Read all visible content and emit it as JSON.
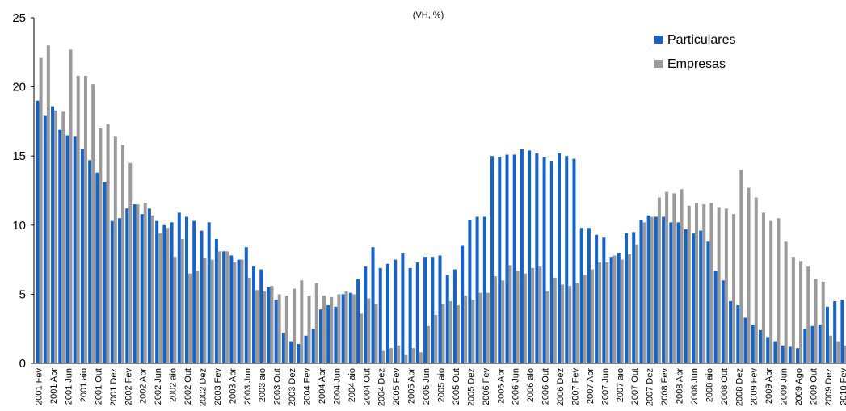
{
  "chart_data": {
    "type": "bar",
    "title": "(VH, %)",
    "categories": [
      "2001 Fev",
      null,
      "2001 Abr",
      null,
      "2001 Jun",
      null,
      "2001 aio",
      null,
      "2001 Out",
      null,
      "2001 Dez",
      null,
      "2002 Fev",
      null,
      "2002 Abr",
      null,
      "2002 Jun",
      null,
      "2002 aio",
      null,
      "2002 Out",
      null,
      "2002 Dez",
      null,
      "2003 Fev",
      null,
      "2003 Abr",
      null,
      "2003 Jun",
      null,
      "2003 aio",
      null,
      "2003 Out",
      null,
      "2003 Dez",
      null,
      "2004 Fev",
      null,
      "2004 Abr",
      null,
      "2004 Jun",
      null,
      "2004 aio",
      null,
      "2004 Out",
      null,
      "2004 Dez",
      null,
      "2005 Fev",
      null,
      "2005 Abr",
      null,
      "2005 Jun",
      null,
      "2005 aio",
      null,
      "2005 Out",
      null,
      "2005 Dez",
      null,
      "2006 Fev",
      null,
      "2006 Abr",
      null,
      "2006 Jun",
      null,
      "2006 aio",
      null,
      "2006 Out",
      null,
      "2006 Dez",
      null,
      "2007 Fev",
      null,
      "2007 Abr",
      null,
      "2007 Jun",
      null,
      "2007 aio",
      null,
      "2007 Out",
      null,
      "2007 Dez",
      null,
      "2008 Fev",
      null,
      "2008 Abr",
      null,
      "2008 Jun",
      null,
      "2008 aio",
      null,
      "2008 Out",
      null,
      "2008 Dez",
      null,
      "2009 Fev",
      null,
      "2009 Abr",
      null,
      "2009 Jun",
      null,
      "2009 Ago",
      null,
      "2009 Out",
      null,
      "2009 Dez",
      null,
      "2010 Fev"
    ],
    "series": [
      {
        "name": "Particulares",
        "color": "#1563c9",
        "values": [
          19.0,
          17.9,
          18.6,
          16.9,
          16.5,
          16.4,
          15.5,
          14.7,
          13.8,
          13.1,
          10.3,
          10.5,
          11.2,
          11.5,
          10.8,
          11.2,
          10.3,
          10.0,
          10.2,
          10.9,
          10.6,
          10.3,
          9.6,
          10.2,
          9.0,
          8.1,
          7.8,
          7.5,
          8.4,
          7.0,
          6.8,
          5.5,
          4.6,
          2.2,
          1.6,
          1.4,
          2.0,
          2.5,
          3.9,
          4.2,
          4.1,
          5.0,
          5.1,
          6.1,
          7.0,
          8.4,
          6.9,
          7.2,
          7.5,
          8.0,
          6.9,
          7.3,
          7.7,
          7.7,
          7.8,
          6.4,
          6.8,
          8.5,
          10.4,
          10.6,
          10.6,
          15.0,
          14.9,
          15.1,
          15.1,
          15.5,
          15.4,
          15.2,
          14.9,
          14.6,
          15.2,
          15.0,
          14.8,
          9.8,
          9.8,
          9.3,
          9.1,
          7.7,
          8.0,
          9.4,
          9.5,
          10.4,
          10.7,
          10.6,
          10.6,
          10.2,
          10.2,
          9.7,
          9.4,
          9.6,
          8.8,
          6.7,
          6.0,
          4.5,
          4.2,
          3.3,
          2.8,
          2.4,
          1.9,
          1.6,
          1.3,
          1.2,
          1.1,
          2.5,
          2.7,
          2.8,
          4.1,
          4.5,
          4.6
        ]
      },
      {
        "name": "Empresas",
        "color": "#9a9a9a",
        "values": [
          22.1,
          23.0,
          18.3,
          18.2,
          22.7,
          20.8,
          20.8,
          20.2,
          17.0,
          17.3,
          16.4,
          15.8,
          14.5,
          11.5,
          11.6,
          10.7,
          9.4,
          9.8,
          7.7,
          9.0,
          6.5,
          6.7,
          7.6,
          7.5,
          8.1,
          8.1,
          7.3,
          7.5,
          6.2,
          5.3,
          5.2,
          5.6,
          5.0,
          4.9,
          5.4,
          6.0,
          4.9,
          5.8,
          4.9,
          4.8,
          5.0,
          5.2,
          5.0,
          3.6,
          4.7,
          4.3,
          0.9,
          1.1,
          1.3,
          0.6,
          1.1,
          0.8,
          2.7,
          3.5,
          4.3,
          4.5,
          4.2,
          4.9,
          4.6,
          5.1,
          5.1,
          6.3,
          6.0,
          7.1,
          6.7,
          6.5,
          6.9,
          7.0,
          5.2,
          6.2,
          5.7,
          5.6,
          5.8,
          6.4,
          6.8,
          7.3,
          7.3,
          7.8,
          7.5,
          7.9,
          8.6,
          10.2,
          10.6,
          12.0,
          12.4,
          12.3,
          12.6,
          11.4,
          11.6,
          11.5,
          11.6,
          11.3,
          11.2,
          10.8,
          14.0,
          12.7,
          12.0,
          10.9,
          10.3,
          10.5,
          8.8,
          7.7,
          7.4,
          7.0,
          6.1,
          5.9,
          2.0,
          1.6,
          1.3
        ]
      }
    ],
    "ylim": [
      0,
      25
    ],
    "yticks": [
      0,
      5,
      10,
      15,
      20,
      25
    ]
  }
}
